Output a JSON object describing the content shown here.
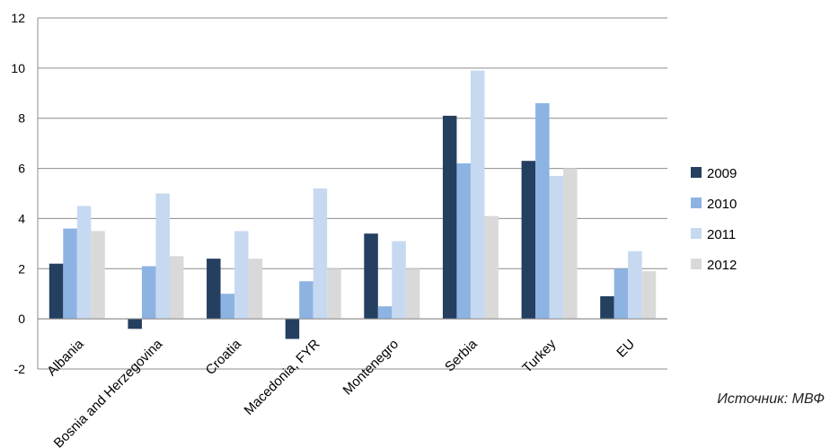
{
  "chart_data": {
    "type": "bar",
    "categories": [
      "Albania",
      "Bosnia and Herzegovina",
      "Croatia",
      "Macedonia, FYR",
      "Montenegro",
      "Serbia",
      "Turkey",
      "EU"
    ],
    "series": [
      {
        "name": "2009",
        "color": "#243f60",
        "values": [
          2.2,
          -0.4,
          2.4,
          -0.8,
          3.4,
          8.1,
          6.3,
          0.9
        ]
      },
      {
        "name": "2010",
        "color": "#8db3e2",
        "values": [
          3.6,
          2.1,
          1.0,
          1.5,
          0.5,
          6.2,
          8.6,
          2.0
        ]
      },
      {
        "name": "2011",
        "color": "#c6d9f1",
        "values": [
          4.5,
          5.0,
          3.5,
          5.2,
          3.1,
          9.9,
          5.7,
          2.7
        ]
      },
      {
        "name": "2012",
        "color": "#d9d9d9",
        "values": [
          3.5,
          2.5,
          2.4,
          2.0,
          2.0,
          4.1,
          6.0,
          1.9
        ]
      }
    ],
    "yticks": [
      "12",
      "10",
      "8",
      "6",
      "4",
      "2",
      "0",
      "-2"
    ],
    "ylim": [
      -2,
      12
    ],
    "grid": true,
    "legend_position": "right"
  },
  "source_note": "Источник: МВФ"
}
